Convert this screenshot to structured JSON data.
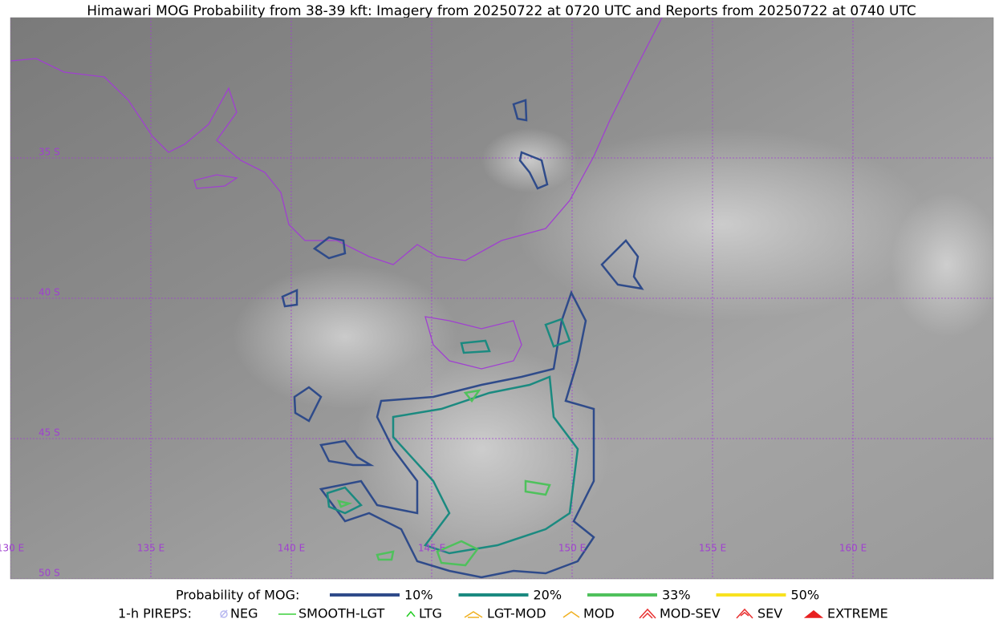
{
  "title": "Himawari MOG Probability from 38-39 kft: Imagery from 20250722 at 0720 UTC and Reports from 20250722 at 0740 UTC",
  "map": {
    "lon_lines": [
      {
        "value": 130,
        "label": "130 E"
      },
      {
        "value": 135,
        "label": "135 E"
      },
      {
        "value": 140,
        "label": "140 E"
      },
      {
        "value": 145,
        "label": "145 E"
      },
      {
        "value": 150,
        "label": "150 E"
      },
      {
        "value": 155,
        "label": "155 E"
      },
      {
        "value": 160,
        "label": "160 E"
      }
    ],
    "lat_lines": [
      {
        "value": 35,
        "label": "35 S"
      },
      {
        "value": 40,
        "label": "40 S"
      },
      {
        "value": 45,
        "label": "45 S"
      },
      {
        "value": 50,
        "label": "50 S"
      }
    ],
    "grid_color": "#a040d0"
  },
  "legend": {
    "probability_title": "Probability of MOG:",
    "probability_items": [
      {
        "label": "10%",
        "color": "#2f4b8a"
      },
      {
        "label": "20%",
        "color": "#1b8a80"
      },
      {
        "label": "33%",
        "color": "#4fc15c"
      },
      {
        "label": "50%",
        "color": "#f8e21f"
      }
    ],
    "pireps_title": "1-h PIREPS:",
    "pireps_items": [
      {
        "label": "NEG",
        "color": "#b9b9f0"
      },
      {
        "label": "SMOOTH-LGT",
        "color": "#3ccf3c"
      },
      {
        "label": "LTG",
        "color": "#22cc22"
      },
      {
        "label": "LGT-MOD",
        "color": "#f0b020"
      },
      {
        "label": "MOD",
        "color": "#f0b020"
      },
      {
        "label": "MOD-SEV",
        "color": "#e83030"
      },
      {
        "label": "SEV",
        "color": "#e83030"
      },
      {
        "label": "EXTREME",
        "color": "#e82020"
      }
    ]
  }
}
